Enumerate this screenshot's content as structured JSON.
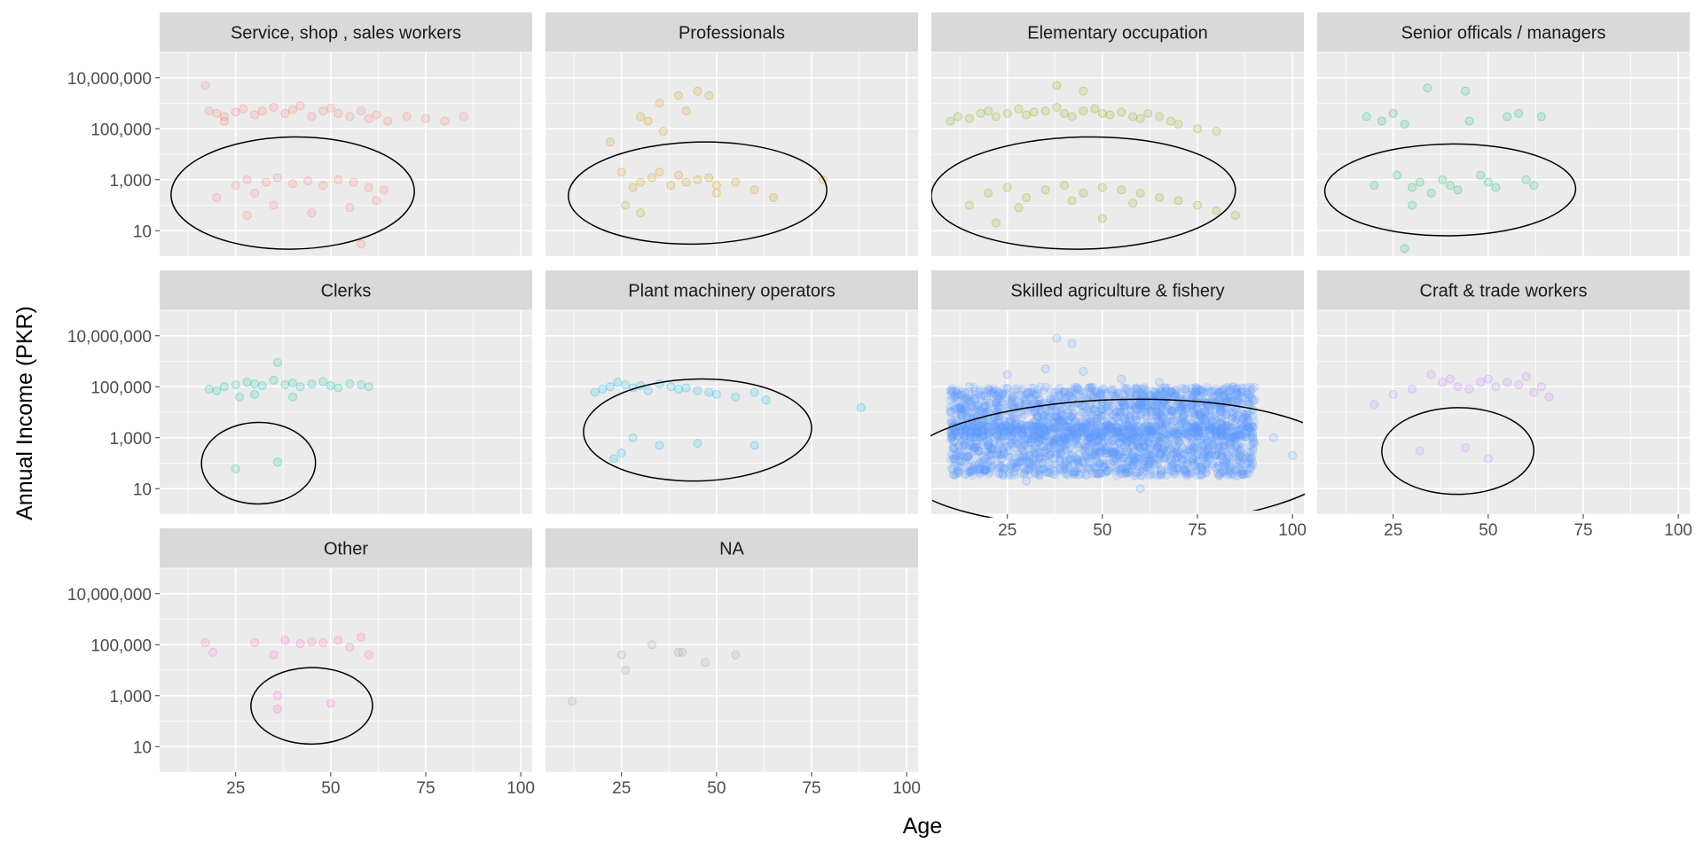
{
  "chart_data": {
    "type": "scatter",
    "layout": "facet_wrap",
    "facet_columns": 4,
    "xlabel": "Age",
    "ylabel": "Annual Income (PKR)",
    "x_axis": {
      "range": [
        5,
        103
      ],
      "breaks": [
        25,
        50,
        75,
        100
      ],
      "tick_labels": [
        "25",
        "50",
        "75",
        "100"
      ]
    },
    "y_axis": {
      "scale": "log10",
      "range": [
        1,
        100000000
      ],
      "breaks": [
        10,
        1000,
        100000,
        10000000
      ],
      "tick_labels": [
        "10",
        "1,000",
        "100,000",
        "10,000,000"
      ]
    },
    "grid": true,
    "point_alpha": 0.15,
    "overlay": "black confidence ellipse per panel",
    "facets": [
      {
        "name": "Service, shop , sales workers",
        "color": "#F8766D",
        "points": [
          [
            18,
            500000
          ],
          [
            20,
            400000
          ],
          [
            22,
            300000
          ],
          [
            25,
            450000
          ],
          [
            27,
            600000
          ],
          [
            30,
            350000
          ],
          [
            32,
            500000
          ],
          [
            35,
            700000
          ],
          [
            38,
            400000
          ],
          [
            40,
            550000
          ],
          [
            42,
            800000
          ],
          [
            45,
            300000
          ],
          [
            48,
            500000
          ],
          [
            50,
            650000
          ],
          [
            52,
            400000
          ],
          [
            55,
            300000
          ],
          [
            58,
            500000
          ],
          [
            60,
            250000
          ],
          [
            62,
            350000
          ],
          [
            65,
            200000
          ],
          [
            70,
            300000
          ],
          [
            75,
            250000
          ],
          [
            80,
            200000
          ],
          [
            85,
            300000
          ],
          [
            17,
            5000000
          ],
          [
            22,
            200000
          ],
          [
            28,
            1000
          ],
          [
            33,
            800
          ],
          [
            36,
            1200
          ],
          [
            40,
            700
          ],
          [
            44,
            900
          ],
          [
            48,
            600
          ],
          [
            52,
            1000
          ],
          [
            56,
            800
          ],
          [
            60,
            500
          ],
          [
            64,
            400
          ],
          [
            25,
            600
          ],
          [
            30,
            300
          ],
          [
            20,
            200
          ],
          [
            28,
            40
          ],
          [
            35,
            100
          ],
          [
            45,
            50
          ],
          [
            55,
            80
          ],
          [
            62,
            150
          ],
          [
            58,
            3
          ]
        ],
        "ellipse": {
          "center": [
            40,
            300
          ],
          "semi_axes_age": 32,
          "semi_axes_log": 2.2,
          "tilt": -1.0
        }
      },
      {
        "name": "Professionals",
        "color": "#CD9600",
        "points": [
          [
            22,
            30000
          ],
          [
            25,
            2000
          ],
          [
            28,
            500
          ],
          [
            30,
            800
          ],
          [
            33,
            1200
          ],
          [
            35,
            2000
          ],
          [
            38,
            600
          ],
          [
            40,
            1500
          ],
          [
            42,
            800
          ],
          [
            45,
            1000
          ],
          [
            48,
            1200
          ],
          [
            50,
            600
          ],
          [
            55,
            800
          ],
          [
            60,
            400
          ],
          [
            30,
            300000
          ],
          [
            35,
            1000000
          ],
          [
            40,
            2000000
          ],
          [
            45,
            3000000
          ],
          [
            48,
            2000000
          ],
          [
            32,
            200000
          ],
          [
            42,
            500000
          ],
          [
            36,
            80000
          ],
          [
            26,
            100
          ],
          [
            30,
            50
          ],
          [
            50,
            300
          ],
          [
            65,
            200
          ],
          [
            78,
            1000
          ]
        ],
        "ellipse": {
          "center": [
            45,
            300
          ],
          "semi_axes_age": 34,
          "semi_axes_log": 2.0,
          "tilt": -1.5
        }
      },
      {
        "name": "Elementary occupation",
        "color": "#7CAE00",
        "points": [
          [
            10,
            200000
          ],
          [
            12,
            300000
          ],
          [
            15,
            250000
          ],
          [
            18,
            400000
          ],
          [
            20,
            500000
          ],
          [
            22,
            300000
          ],
          [
            25,
            400000
          ],
          [
            28,
            600000
          ],
          [
            30,
            350000
          ],
          [
            32,
            450000
          ],
          [
            35,
            500000
          ],
          [
            38,
            700000
          ],
          [
            40,
            400000
          ],
          [
            42,
            300000
          ],
          [
            45,
            500000
          ],
          [
            48,
            600000
          ],
          [
            50,
            400000
          ],
          [
            52,
            350000
          ],
          [
            55,
            450000
          ],
          [
            58,
            300000
          ],
          [
            60,
            250000
          ],
          [
            62,
            400000
          ],
          [
            65,
            300000
          ],
          [
            68,
            200000
          ],
          [
            70,
            150000
          ],
          [
            75,
            100000
          ],
          [
            80,
            80000
          ],
          [
            20,
            300
          ],
          [
            25,
            500
          ],
          [
            30,
            200
          ],
          [
            35,
            400
          ],
          [
            40,
            600
          ],
          [
            45,
            300
          ],
          [
            50,
            500
          ],
          [
            55,
            400
          ],
          [
            60,
            300
          ],
          [
            65,
            200
          ],
          [
            70,
            150
          ],
          [
            75,
            100
          ],
          [
            80,
            60
          ],
          [
            85,
            40
          ],
          [
            15,
            100
          ],
          [
            28,
            80
          ],
          [
            42,
            150
          ],
          [
            58,
            120
          ],
          [
            38,
            5000000
          ],
          [
            45,
            3000000
          ],
          [
            22,
            20
          ],
          [
            50,
            30
          ]
        ],
        "ellipse": {
          "center": [
            45,
            300
          ],
          "semi_axes_age": 40,
          "semi_axes_log": 2.2,
          "tilt": -1.2
        }
      },
      {
        "name": "Senior officals / managers",
        "color": "#00BE67",
        "points": [
          [
            18,
            300000
          ],
          [
            22,
            200000
          ],
          [
            25,
            400000
          ],
          [
            28,
            150000
          ],
          [
            30,
            500
          ],
          [
            32,
            800
          ],
          [
            35,
            300
          ],
          [
            38,
            1000
          ],
          [
            40,
            600
          ],
          [
            42,
            400
          ],
          [
            45,
            200000
          ],
          [
            48,
            1500
          ],
          [
            50,
            800
          ],
          [
            52,
            500
          ],
          [
            55,
            300000
          ],
          [
            58,
            400000
          ],
          [
            60,
            1000
          ],
          [
            62,
            600
          ],
          [
            64,
            300000
          ],
          [
            20,
            600
          ],
          [
            26,
            1500
          ],
          [
            34,
            4000000
          ],
          [
            44,
            3000000
          ],
          [
            30,
            100
          ],
          [
            28,
            2
          ]
        ],
        "ellipse": {
          "center": [
            40,
            400
          ],
          "semi_axes_age": 33,
          "semi_axes_log": 1.8,
          "tilt": -0.6
        }
      },
      {
        "name": "Clerks",
        "color": "#00BFA5",
        "points": [
          [
            18,
            80000
          ],
          [
            20,
            70000
          ],
          [
            22,
            100000
          ],
          [
            25,
            120000
          ],
          [
            28,
            150000
          ],
          [
            30,
            130000
          ],
          [
            32,
            110000
          ],
          [
            35,
            180000
          ],
          [
            36,
            900000
          ],
          [
            38,
            120000
          ],
          [
            40,
            140000
          ],
          [
            42,
            100000
          ],
          [
            45,
            130000
          ],
          [
            48,
            160000
          ],
          [
            50,
            110000
          ],
          [
            52,
            90000
          ],
          [
            55,
            130000
          ],
          [
            58,
            120000
          ],
          [
            60,
            100000
          ],
          [
            25,
            60
          ],
          [
            36,
            110
          ],
          [
            30,
            50000
          ],
          [
            40,
            40000
          ],
          [
            26,
            40000
          ]
        ],
        "ellipse": {
          "center": [
            31,
            100
          ],
          "semi_axes_age": 15,
          "semi_axes_log": 1.6,
          "tilt": -0.6
        }
      },
      {
        "name": "Plant machinery operators",
        "color": "#00B8E7",
        "points": [
          [
            18,
            60000
          ],
          [
            20,
            80000
          ],
          [
            22,
            100000
          ],
          [
            24,
            150000
          ],
          [
            26,
            120000
          ],
          [
            28,
            90000
          ],
          [
            30,
            110000
          ],
          [
            32,
            70000
          ],
          [
            35,
            130000
          ],
          [
            38,
            100000
          ],
          [
            40,
            80000
          ],
          [
            42,
            90000
          ],
          [
            45,
            70000
          ],
          [
            48,
            60000
          ],
          [
            50,
            50000
          ],
          [
            55,
            40000
          ],
          [
            60,
            60000
          ],
          [
            63,
            30000
          ],
          [
            88,
            15000
          ],
          [
            25,
            250
          ],
          [
            28,
            1000
          ],
          [
            35,
            500
          ],
          [
            45,
            600
          ],
          [
            60,
            500
          ],
          [
            23,
            150
          ]
        ],
        "ellipse": {
          "center": [
            45,
            2000
          ],
          "semi_axes_age": 30,
          "semi_axes_log": 2.0,
          "tilt": -1.2
        }
      },
      {
        "name": "Skilled agriculture & fishery",
        "color": "#619CFF",
        "dense": {
          "age_range": [
            10,
            90
          ],
          "log_income_bands": [
            [
              3.0,
              5.0
            ],
            [
              1.5,
              3.5
            ]
          ]
        },
        "points": [
          [
            15,
            100000
          ],
          [
            25,
            300000
          ],
          [
            35,
            500000
          ],
          [
            45,
            400000
          ],
          [
            55,
            200000
          ],
          [
            65,
            150000
          ],
          [
            75,
            80000
          ],
          [
            85,
            50000
          ],
          [
            20,
            500
          ],
          [
            30,
            800
          ],
          [
            40,
            1000
          ],
          [
            50,
            600
          ],
          [
            60,
            400
          ],
          [
            70,
            300
          ],
          [
            80,
            200
          ],
          [
            95,
            1000
          ],
          [
            100,
            200
          ],
          [
            38,
            8000000
          ],
          [
            42,
            5000000
          ],
          [
            30,
            20
          ],
          [
            60,
            10
          ],
          [
            90,
            30000
          ]
        ],
        "ellipse": {
          "center": [
            55,
            100
          ],
          "semi_axes_age": 58,
          "semi_axes_log": 2.5,
          "tilt": -1.5
        }
      },
      {
        "name": "Craft & trade workers",
        "color": "#C77CFF",
        "points": [
          [
            20,
            20000
          ],
          [
            25,
            50000
          ],
          [
            30,
            80000
          ],
          [
            35,
            300000
          ],
          [
            38,
            150000
          ],
          [
            40,
            200000
          ],
          [
            42,
            100000
          ],
          [
            45,
            80000
          ],
          [
            48,
            150000
          ],
          [
            50,
            200000
          ],
          [
            52,
            100000
          ],
          [
            55,
            150000
          ],
          [
            58,
            120000
          ],
          [
            60,
            250000
          ],
          [
            62,
            60000
          ],
          [
            64,
            100000
          ],
          [
            66,
            40000
          ],
          [
            32,
            300
          ],
          [
            44,
            400
          ],
          [
            50,
            150
          ]
        ],
        "ellipse": {
          "center": [
            42,
            300
          ],
          "semi_axes_age": 20,
          "semi_axes_log": 1.7,
          "tilt": -0.5
        }
      },
      {
        "name": "Other",
        "color": "#FF61CC",
        "points": [
          [
            17,
            120000
          ],
          [
            19,
            50000
          ],
          [
            30,
            120000
          ],
          [
            35,
            40000
          ],
          [
            38,
            150000
          ],
          [
            42,
            110000
          ],
          [
            45,
            130000
          ],
          [
            48,
            120000
          ],
          [
            52,
            150000
          ],
          [
            55,
            80000
          ],
          [
            58,
            200000
          ],
          [
            60,
            40000
          ],
          [
            36,
            1000
          ],
          [
            36,
            300
          ],
          [
            50,
            500
          ]
        ],
        "ellipse": {
          "center": [
            45,
            400
          ],
          "semi_axes_age": 16,
          "semi_axes_log": 1.5,
          "tilt": -0.4
        }
      },
      {
        "name": "NA",
        "color": "#999999",
        "points": [
          [
            12,
            600
          ],
          [
            25,
            40000
          ],
          [
            26,
            10000
          ],
          [
            33,
            100000
          ],
          [
            40,
            50000
          ],
          [
            41,
            50000
          ],
          [
            47,
            20000
          ],
          [
            55,
            40000
          ]
        ],
        "ellipse": null
      }
    ]
  }
}
